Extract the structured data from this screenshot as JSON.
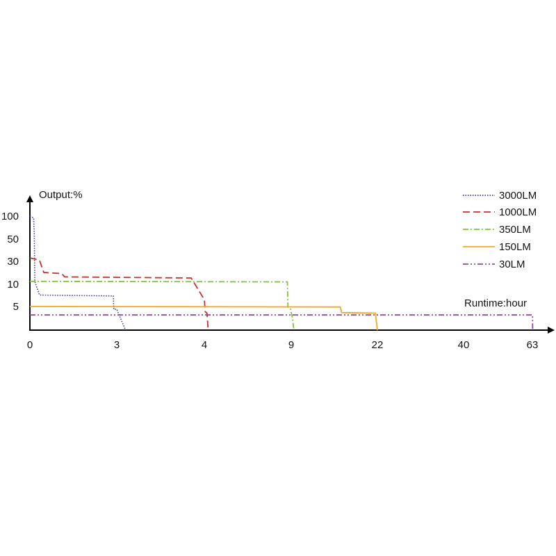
{
  "chart_data": {
    "type": "line",
    "y_title": "Output:%",
    "x_title": "Runtime:hour",
    "y_ticks": [
      "100",
      "50",
      "30",
      "10",
      "5"
    ],
    "x_ticks": [
      "0",
      "3",
      "4",
      "9",
      "22",
      "40",
      "63"
    ],
    "x_scale": "piecewise, ticks equally spaced",
    "y_scale": "piecewise, ticks equally spaced",
    "grid": false,
    "legend_position": "top-right",
    "series": [
      {
        "name": "3000LM",
        "color": "#3a3aa8",
        "dash": "dotted",
        "points": [
          [
            0,
            100
          ],
          [
            0.13,
            96
          ],
          [
            0.15,
            60
          ],
          [
            0.17,
            12
          ],
          [
            0.33,
            7.5
          ],
          [
            2.88,
            7.3
          ],
          [
            2.9,
            4.4
          ],
          [
            3.0,
            4.4
          ],
          [
            3.05,
            2.2
          ],
          [
            3.1,
            0
          ]
        ]
      },
      {
        "name": "1000LM",
        "color": "#c8302c",
        "dash": "dashed",
        "points": [
          [
            0,
            33
          ],
          [
            0.33,
            31
          ],
          [
            0.48,
            20
          ],
          [
            1.1,
            19
          ],
          [
            1.2,
            16
          ],
          [
            3.85,
            15
          ],
          [
            4.0,
            6.5
          ],
          [
            4.05,
            3.9
          ],
          [
            4.15,
            3.6
          ],
          [
            4.22,
            0
          ]
        ]
      },
      {
        "name": "350LM",
        "color": "#7ec832",
        "dash": "dash-dot",
        "points": [
          [
            0,
            12
          ],
          [
            8.78,
            11.5
          ],
          [
            8.81,
            4.9
          ],
          [
            8.95,
            4.6
          ],
          [
            9.2,
            2.5
          ],
          [
            9.4,
            0
          ]
        ]
      },
      {
        "name": "150LM",
        "color": "#f5a623",
        "dash": "solid",
        "points": [
          [
            0,
            5
          ],
          [
            16.4,
            4.9
          ],
          [
            16.6,
            3.7
          ],
          [
            21.7,
            3.6
          ],
          [
            22.0,
            0
          ]
        ]
      },
      {
        "name": "30LM",
        "color": "#8e4a9a",
        "dash": "dash-dot-dot",
        "points": [
          [
            0,
            3.2
          ],
          [
            63,
            3.2
          ],
          [
            63.05,
            2.8
          ],
          [
            63.1,
            0
          ]
        ]
      }
    ]
  }
}
